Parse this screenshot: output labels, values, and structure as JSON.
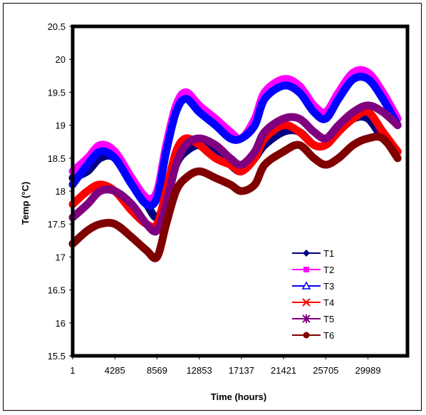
{
  "chart_data": {
    "type": "line",
    "title": "",
    "xlabel": "Time (hours)",
    "ylabel": "Temp (°C)",
    "xlim": [
      1,
      34000
    ],
    "ylim": [
      15.5,
      20.5
    ],
    "x_ticks": [
      "1",
      "4285",
      "8569",
      "12853",
      "17137",
      "21421",
      "25705",
      "29989"
    ],
    "y_ticks": [
      "15.5",
      "16",
      "16.5",
      "17",
      "17.5",
      "18",
      "18.5",
      "19",
      "19.5",
      "20",
      "20.5"
    ],
    "grid": false,
    "legend_position": "right-middle",
    "x": [
      1,
      1500,
      2800,
      4285,
      6000,
      7500,
      8569,
      9500,
      10500,
      11500,
      12853,
      14500,
      16000,
      17137,
      18500,
      19500,
      21421,
      23000,
      24500,
      25705,
      27000,
      28500,
      29989,
      31500,
      33000
    ],
    "series": [
      {
        "name": "T1",
        "color": "#000080",
        "marker": "diamond",
        "values": [
          18.2,
          18.3,
          18.5,
          18.5,
          18.1,
          17.8,
          17.6,
          17.9,
          18.4,
          18.6,
          18.7,
          18.6,
          18.4,
          18.3,
          18.5,
          18.7,
          18.9,
          18.9,
          18.7,
          18.7,
          18.9,
          19.1,
          19.1,
          18.8,
          18.6
        ]
      },
      {
        "name": "T2",
        "color": "#ff00ff",
        "marker": "square",
        "values": [
          18.3,
          18.5,
          18.7,
          18.6,
          18.2,
          17.9,
          18.0,
          18.7,
          19.3,
          19.5,
          19.3,
          19.1,
          18.9,
          18.8,
          19.1,
          19.5,
          19.7,
          19.6,
          19.3,
          19.2,
          19.5,
          19.8,
          19.8,
          19.5,
          19.1
        ]
      },
      {
        "name": "T3",
        "color": "#0000ff",
        "marker": "triangle",
        "values": [
          18.1,
          18.4,
          18.6,
          18.5,
          18.1,
          17.8,
          17.9,
          18.6,
          19.2,
          19.4,
          19.2,
          19.0,
          18.8,
          18.8,
          19.0,
          19.4,
          19.6,
          19.5,
          19.2,
          19.1,
          19.4,
          19.7,
          19.7,
          19.4,
          19.0
        ]
      },
      {
        "name": "T4",
        "color": "#ff0000",
        "marker": "x",
        "values": [
          17.8,
          18.0,
          18.1,
          18.0,
          17.7,
          17.5,
          17.5,
          18.0,
          18.6,
          18.8,
          18.7,
          18.5,
          18.4,
          18.3,
          18.5,
          18.8,
          19.0,
          18.9,
          18.7,
          18.7,
          18.9,
          19.1,
          19.2,
          18.9,
          18.6
        ]
      },
      {
        "name": "T5",
        "color": "#800080",
        "marker": "star",
        "values": [
          17.6,
          17.8,
          18.0,
          18.0,
          17.8,
          17.5,
          17.4,
          17.8,
          18.4,
          18.7,
          18.8,
          18.7,
          18.5,
          18.4,
          18.6,
          18.9,
          19.1,
          19.1,
          18.9,
          18.8,
          19.0,
          19.2,
          19.3,
          19.2,
          19.0
        ]
      },
      {
        "name": "T6",
        "color": "#800000",
        "marker": "circle",
        "values": [
          17.2,
          17.4,
          17.5,
          17.5,
          17.3,
          17.1,
          17.0,
          17.5,
          18.0,
          18.2,
          18.3,
          18.2,
          18.1,
          18.0,
          18.1,
          18.4,
          18.6,
          18.7,
          18.5,
          18.4,
          18.5,
          18.7,
          18.8,
          18.8,
          18.5
        ]
      }
    ]
  }
}
